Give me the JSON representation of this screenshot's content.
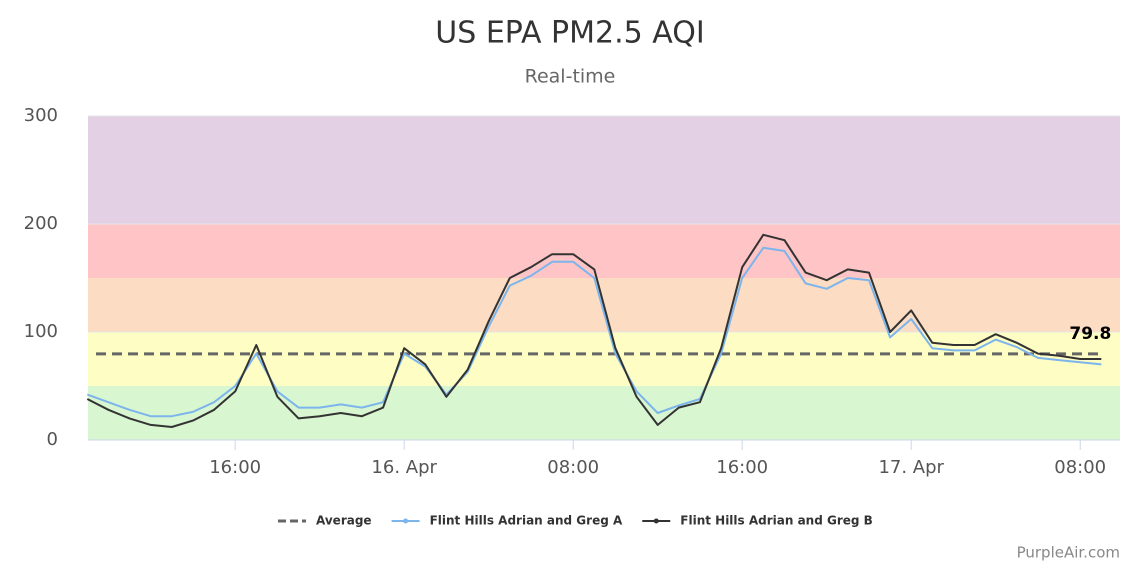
{
  "chart_data": {
    "type": "line",
    "title": "US EPA PM2.5 AQI",
    "subtitle": "Real-time",
    "x": [
      "04-15T09:00",
      "04-15T10:00",
      "04-15T11:00",
      "04-15T12:00",
      "04-15T13:00",
      "04-15T14:00",
      "04-15T15:00",
      "04-15T16:00",
      "04-15T17:00",
      "04-15T18:00",
      "04-15T19:00",
      "04-15T20:00",
      "04-15T21:00",
      "04-15T22:00",
      "04-15T23:00",
      "04-16T00:00",
      "04-16T01:00",
      "04-16T02:00",
      "04-16T03:00",
      "04-16T04:00",
      "04-16T05:00",
      "04-16T06:00",
      "04-16T07:00",
      "04-16T08:00",
      "04-16T09:00",
      "04-16T10:00",
      "04-16T11:00",
      "04-16T12:00",
      "04-16T13:00",
      "04-16T14:00",
      "04-16T15:00",
      "04-16T16:00",
      "04-16T17:00",
      "04-16T18:00",
      "04-16T19:00",
      "04-16T20:00",
      "04-16T21:00",
      "04-16T22:00",
      "04-16T23:00",
      "04-17T00:00",
      "04-17T01:00",
      "04-17T02:00",
      "04-17T03:00",
      "04-17T04:00",
      "04-17T05:00",
      "04-17T06:00",
      "04-17T07:00",
      "04-17T08:00",
      "04-17T09:00"
    ],
    "series": [
      {
        "name": "Flint Hills Adrian and Greg A",
        "color": "#7cb5ec",
        "values": [
          42,
          35,
          28,
          22,
          22,
          26,
          35,
          50,
          80,
          45,
          30,
          30,
          33,
          30,
          35,
          80,
          68,
          42,
          63,
          105,
          143,
          152,
          165,
          165,
          150,
          80,
          45,
          25,
          32,
          38,
          80,
          150,
          178,
          175,
          145,
          140,
          150,
          148,
          95,
          112,
          85,
          83,
          83,
          93,
          86,
          76,
          74,
          72,
          70
        ]
      },
      {
        "name": "Flint Hills Adrian and Greg B",
        "color": "#333333",
        "values": [
          38,
          28,
          20,
          14,
          12,
          18,
          28,
          45,
          88,
          40,
          20,
          22,
          25,
          22,
          30,
          85,
          70,
          40,
          65,
          110,
          150,
          160,
          172,
          172,
          158,
          85,
          40,
          14,
          30,
          35,
          85,
          160,
          190,
          185,
          155,
          148,
          158,
          155,
          100,
          120,
          90,
          88,
          88,
          98,
          90,
          80,
          78,
          75,
          75
        ]
      }
    ],
    "average": {
      "name": "Average",
      "color": "#666666",
      "value": 79.8
    },
    "bands": [
      {
        "from": 0,
        "to": 50,
        "color": "#d8f6d0"
      },
      {
        "from": 50,
        "to": 100,
        "color": "#fdfdc4"
      },
      {
        "from": 100,
        "to": 150,
        "color": "#fcdcc2"
      },
      {
        "from": 150,
        "to": 200,
        "color": "#ffc4c6"
      },
      {
        "from": 200,
        "to": 300,
        "color": "#e3d0e5"
      }
    ],
    "xlim": [
      "04-15T09:02",
      "04-17T09:53"
    ],
    "xticks": [
      {
        "value": "04-15T16:00",
        "label": "16:00"
      },
      {
        "value": "04-16T00:00",
        "label": "16. Apr"
      },
      {
        "value": "04-16T08:00",
        "label": "08:00"
      },
      {
        "value": "04-16T16:00",
        "label": "16:00"
      },
      {
        "value": "04-17T00:00",
        "label": "17. Apr"
      },
      {
        "value": "04-17T08:00",
        "label": "08:00"
      }
    ],
    "ylim": [
      0,
      300
    ],
    "yticks": [
      0,
      100,
      200,
      300
    ],
    "grid": true,
    "legend": "bottom",
    "credit": "PurpleAir.com"
  }
}
